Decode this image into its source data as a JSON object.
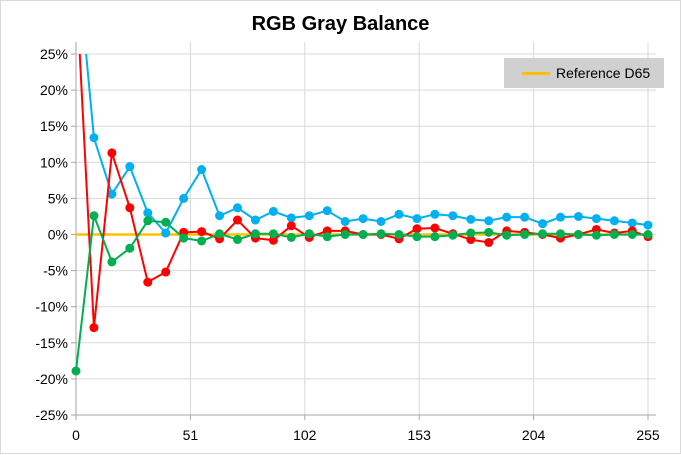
{
  "chart_data": {
    "type": "line",
    "title": "RGB Gray Balance",
    "xlabel": "",
    "ylabel": "",
    "xlim": [
      0,
      255
    ],
    "ylim": [
      -25,
      25
    ],
    "x_ticks": [
      "0",
      "51",
      "102",
      "153",
      "204",
      "255"
    ],
    "y_ticks": [
      "25%",
      "20%",
      "15%",
      "10%",
      "5%",
      "0%",
      "-5%",
      "-10%",
      "-15%",
      "-20%",
      "-25%"
    ],
    "grid": true,
    "legend_position": "top-right",
    "x": [
      0,
      8,
      16,
      24,
      32,
      40,
      48,
      56,
      64,
      72,
      80,
      88,
      96,
      104,
      112,
      120,
      128,
      136,
      144,
      152,
      160,
      168,
      176,
      184,
      192,
      200,
      208,
      216,
      224,
      232,
      240,
      248,
      255
    ],
    "series": [
      {
        "color": "#00b0f0",
        "values": [
          40,
          13.4,
          5.6,
          9.4,
          3.0,
          0.2,
          5.0,
          9.0,
          2.6,
          3.7,
          2.0,
          3.2,
          2.3,
          2.6,
          3.3,
          1.8,
          2.2,
          1.8,
          2.8,
          2.2,
          2.8,
          2.6,
          2.1,
          1.9,
          2.4,
          2.4,
          1.5,
          2.4,
          2.5,
          2.2,
          1.9,
          1.6,
          1.3
        ]
      },
      {
        "color": "#ff0000",
        "values": [
          35,
          -12.9,
          11.3,
          3.7,
          -6.6,
          -5.2,
          0.3,
          0.4,
          -0.6,
          2.0,
          -0.5,
          -0.8,
          1.2,
          -0.4,
          0.5,
          0.5,
          0,
          0,
          -0.6,
          0.8,
          0.9,
          0.1,
          -0.7,
          -1.1,
          0.5,
          0.3,
          0,
          -0.5,
          0,
          0.7,
          0.2,
          0.5,
          -0.3
        ]
      },
      {
        "color": "#00b050",
        "values": [
          -18.9,
          2.6,
          -3.8,
          -1.9,
          1.9,
          1.7,
          -0.5,
          -0.9,
          0.1,
          -0.7,
          0.1,
          0.1,
          -0.4,
          0.1,
          -0.3,
          0,
          0,
          0.1,
          0,
          -0.3,
          -0.3,
          -0.1,
          0.2,
          0.3,
          -0.1,
          0,
          0.1,
          0.1,
          0,
          -0.1,
          0,
          0,
          0
        ]
      },
      {
        "name": "Reference D65",
        "color": "#ffc000",
        "reference_value": 0
      }
    ]
  }
}
